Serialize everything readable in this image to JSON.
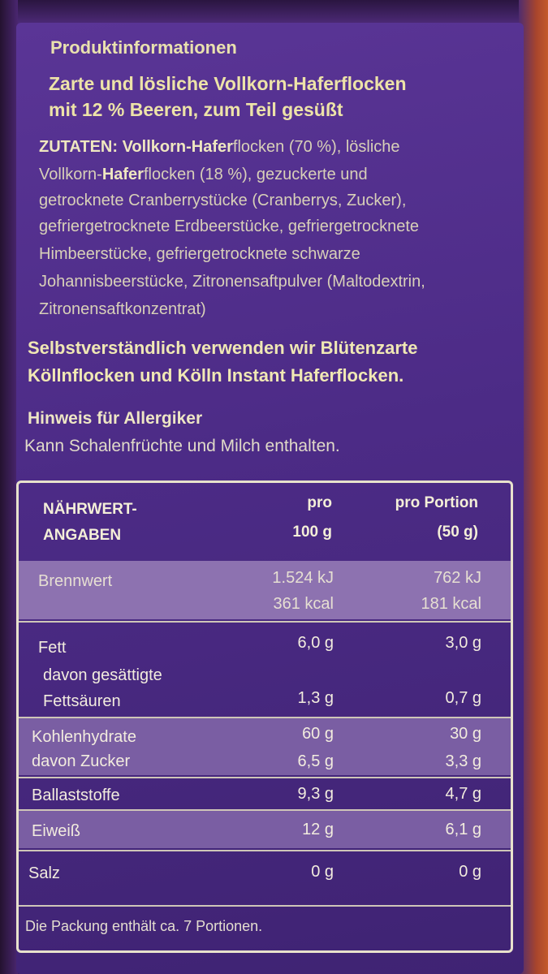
{
  "heading": "Produktinformationen",
  "subtitle": [
    "Zarte und lösliche Vollkorn-Haferflocken",
    "mit 12 % Beeren, zum Teil gesüßt"
  ],
  "ingredients": [
    {
      "pre": "ZUTATEN: Vollkorn-",
      "bold": "Hafer",
      "post": "flocken (70 %), lösliche"
    },
    {
      "pre": "Vollkorn-",
      "bold": "Hafer",
      "post": "flocken (18 %), gezuckerte und"
    },
    {
      "pre": "getrocknete Cranberrystücke (Cranberrys, Zucker),",
      "bold": "",
      "post": ""
    },
    {
      "pre": "gefriergetrocknete Erdbeerstücke, gefriergetrocknete",
      "bold": "",
      "post": ""
    },
    {
      "pre": "Himbeerstücke, gefriergetrocknete schwarze",
      "bold": "",
      "post": ""
    },
    {
      "pre": "Johannisbeerstücke, Zitronensaftpulver (Maltodextrin,",
      "bold": "",
      "post": ""
    },
    {
      "pre": "Zitronensaftkonzentrat)",
      "bold": "",
      "post": ""
    }
  ],
  "claim": [
    "Selbstverständlich verwenden wir Blütenzarte",
    "Köllnflocken und Kölln Instant Haferflocken."
  ],
  "allergy": {
    "heading": "Hinweis für Allergiker",
    "text": "Kann Schalenfrüchte und Milch enthalten."
  },
  "nutrition": {
    "header": {
      "label_line1": "NÄHRWERT-",
      "label_line2": "ANGABEN",
      "col1_line1": "pro",
      "col1_line2": "100 g",
      "col2_line1": "pro Portion",
      "col2_line2": "(50 g)"
    },
    "brennwert": {
      "label": "Brennwert",
      "v1a": "1.524 kJ",
      "v1b": "361 kcal",
      "v2a": "762 kJ",
      "v2b": "181 kcal"
    },
    "fett": {
      "label": "Fett",
      "v1": "6,0 g",
      "v2": "3,0 g"
    },
    "gesaettigt": {
      "label1": "davon gesättigte",
      "label2": "Fettsäuren",
      "v1": "1,3 g",
      "v2": "0,7 g"
    },
    "kohlenhydrate": {
      "label": "Kohlenhydrate",
      "v1": "60 g",
      "v2": "30 g"
    },
    "zucker": {
      "label": "davon Zucker",
      "v1": "6,5 g",
      "v2": "3,3 g"
    },
    "ballaststoffe": {
      "label": "Ballaststoffe",
      "v1": "9,3 g",
      "v2": "4,7 g"
    },
    "eiweiss": {
      "label": "Eiweiß",
      "v1": "12 g",
      "v2": "6,1 g"
    },
    "salz": {
      "label": "Salz",
      "v1": "0 g",
      "v2": "0 g"
    },
    "footer": "Die Packung enthält ca. 7 Portionen."
  },
  "colors": {
    "background": "#4c2b86",
    "highlight_band": "#8d72b0",
    "text": "#ede3a8"
  }
}
